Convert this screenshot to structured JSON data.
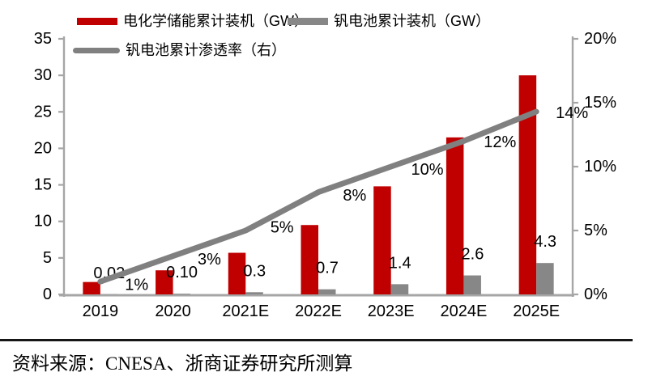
{
  "legend": {
    "items": [
      {
        "label": "电化学储能累计装机（GW）",
        "color": "#c00000",
        "type": "bar"
      },
      {
        "label": "钒电池累计装机（GW）",
        "color": "#878787",
        "type": "bar"
      },
      {
        "label": "钒电池累计渗透率（右）",
        "color": "#808080",
        "type": "line"
      }
    ]
  },
  "chart_data": {
    "type": "bar",
    "subtype": "grouped-bars-with-line",
    "categories": [
      "2019",
      "2020",
      "2021E",
      "2022E",
      "2023E",
      "2024E",
      "2025E"
    ],
    "series": [
      {
        "name": "电化学储能累计装机（GW）",
        "type": "bar",
        "axis": "left",
        "color": "#c00000",
        "values": [
          1.7,
          3.3,
          5.7,
          9.5,
          14.8,
          21.5,
          30.0
        ],
        "labels": []
      },
      {
        "name": "钒电池累计装机（GW）",
        "type": "bar",
        "axis": "left",
        "color": "#878787",
        "values": [
          0.02,
          0.1,
          0.3,
          0.7,
          1.4,
          2.6,
          4.3
        ],
        "labels": [
          "0.02",
          "0.10",
          "0.3",
          "0.7",
          "1.4",
          "2.6",
          "4.3"
        ]
      },
      {
        "name": "钒电池累计渗透率（右）",
        "type": "line",
        "axis": "right",
        "color": "#808080",
        "values": [
          1,
          3,
          5,
          8,
          10,
          12,
          14.3
        ],
        "labels": [
          "1%",
          "3%",
          "5%",
          "8%",
          "10%",
          "12%",
          "14%"
        ]
      }
    ],
    "left_axis": {
      "min": 0,
      "max": 35,
      "step": 5,
      "ticks": [
        "0",
        "5",
        "10",
        "15",
        "20",
        "25",
        "30",
        "35"
      ]
    },
    "right_axis": {
      "min": 0,
      "max": 20,
      "step": 5,
      "ticks": [
        "0%",
        "5%",
        "10%",
        "15%",
        "20%"
      ]
    },
    "grid": false,
    "legend_position": "top",
    "axis_color": "#a6a6a6",
    "text_color": "#000000"
  },
  "source": {
    "text": "资料来源：CNESA、浙商证券研究所测算"
  }
}
